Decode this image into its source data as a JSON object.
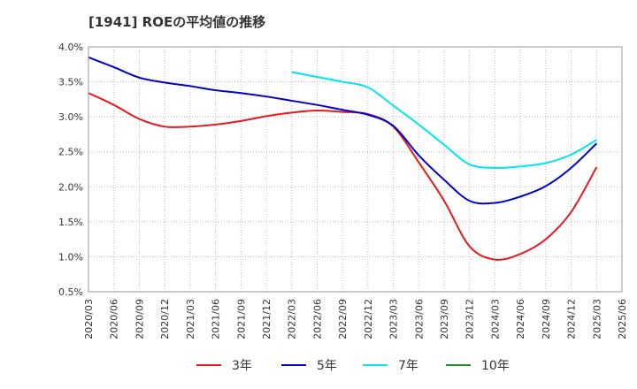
{
  "chart_data": {
    "type": "line",
    "title": "[1941]  ROEの平均値の推移",
    "xlabel": "",
    "ylabel": "",
    "ylim": [
      0.5,
      4.0
    ],
    "ytick_labels": [
      "0.5%",
      "1.0%",
      "1.5%",
      "2.0%",
      "2.5%",
      "3.0%",
      "3.5%",
      "4.0%"
    ],
    "yticks": [
      0.5,
      1.0,
      1.5,
      2.0,
      2.5,
      3.0,
      3.5,
      4.0
    ],
    "categories": [
      "2020/03",
      "2020/06",
      "2020/09",
      "2020/12",
      "2021/03",
      "2021/06",
      "2021/09",
      "2021/12",
      "2022/03",
      "2022/06",
      "2022/09",
      "2022/12",
      "2023/03",
      "2023/06",
      "2023/09",
      "2023/12",
      "2024/03",
      "2024/06",
      "2024/09",
      "2024/12",
      "2025/03",
      "2025/06"
    ],
    "grid": true,
    "legend_position": "bottom",
    "series": [
      {
        "name": "3年",
        "color": "#e41a1c",
        "values": [
          3.34,
          3.17,
          2.97,
          2.86,
          2.86,
          2.89,
          2.94,
          3.01,
          3.06,
          3.09,
          3.07,
          3.04,
          2.86,
          2.35,
          1.8,
          1.15,
          0.96,
          1.04,
          1.25,
          1.64,
          2.28,
          null
        ]
      },
      {
        "name": "5年",
        "color": "#0000cc",
        "values": [
          3.85,
          3.71,
          3.56,
          3.49,
          3.44,
          3.38,
          3.34,
          3.29,
          3.23,
          3.17,
          3.1,
          3.03,
          2.87,
          2.45,
          2.1,
          1.8,
          1.77,
          1.86,
          2.01,
          2.27,
          2.62,
          null
        ]
      },
      {
        "name": "7年",
        "color": "#00e5ee",
        "values": [
          null,
          null,
          null,
          null,
          null,
          null,
          null,
          null,
          3.64,
          3.57,
          3.5,
          3.42,
          3.16,
          2.89,
          2.6,
          2.32,
          2.27,
          2.29,
          2.34,
          2.46,
          2.67,
          null
        ]
      },
      {
        "name": "10年",
        "color": "#228b22",
        "values": [
          null,
          null,
          null,
          null,
          null,
          null,
          null,
          null,
          null,
          null,
          null,
          null,
          null,
          null,
          null,
          null,
          null,
          null,
          null,
          null,
          null,
          null
        ]
      }
    ]
  }
}
